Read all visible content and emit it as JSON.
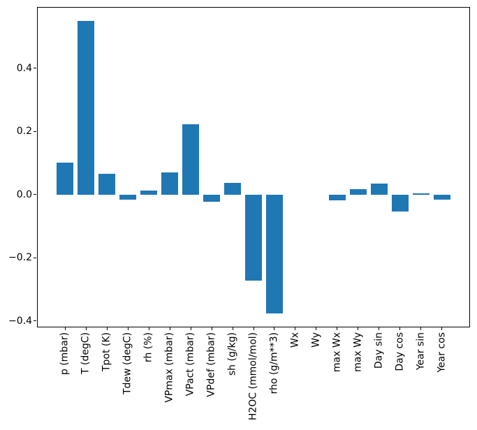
{
  "figure": {
    "background_color": "#ffffff",
    "text_color": "#000000"
  },
  "chart_data": {
    "type": "bar",
    "title": "",
    "categories": [
      "p (mbar)",
      "T (degC)",
      "Tpot (K)",
      "Tdew (degC)",
      "rh (%)",
      "VPmax (mbar)",
      "VPact (mbar)",
      "VPdef (mbar)",
      "sh (g/kg)",
      "H2OC (mmol/mol)",
      "rho (g/m**3)",
      "Wx",
      "Wy",
      "max Wx",
      "max Wy",
      "Day sin",
      "Day cos",
      "Year sin",
      "Year cos"
    ],
    "values": [
      0.102,
      0.55,
      0.066,
      -0.015,
      0.014,
      0.07,
      0.222,
      -0.022,
      0.038,
      -0.273,
      -0.376,
      0.0,
      0.0,
      -0.018,
      0.018,
      0.036,
      -0.054,
      0.004,
      -0.015
    ],
    "bar_color": "#1f77b4",
    "bar_rel_width": 0.8,
    "ylim": [
      -0.42,
      0.594
    ],
    "ytick_values": [
      -0.4,
      -0.2,
      0.0,
      0.2,
      0.4
    ],
    "ytick_labels": [
      "−0.4",
      "−0.2",
      "0.0",
      "0.2",
      "0.4"
    ],
    "xtick_rotation_deg": 90,
    "grid": false,
    "legend": false
  }
}
